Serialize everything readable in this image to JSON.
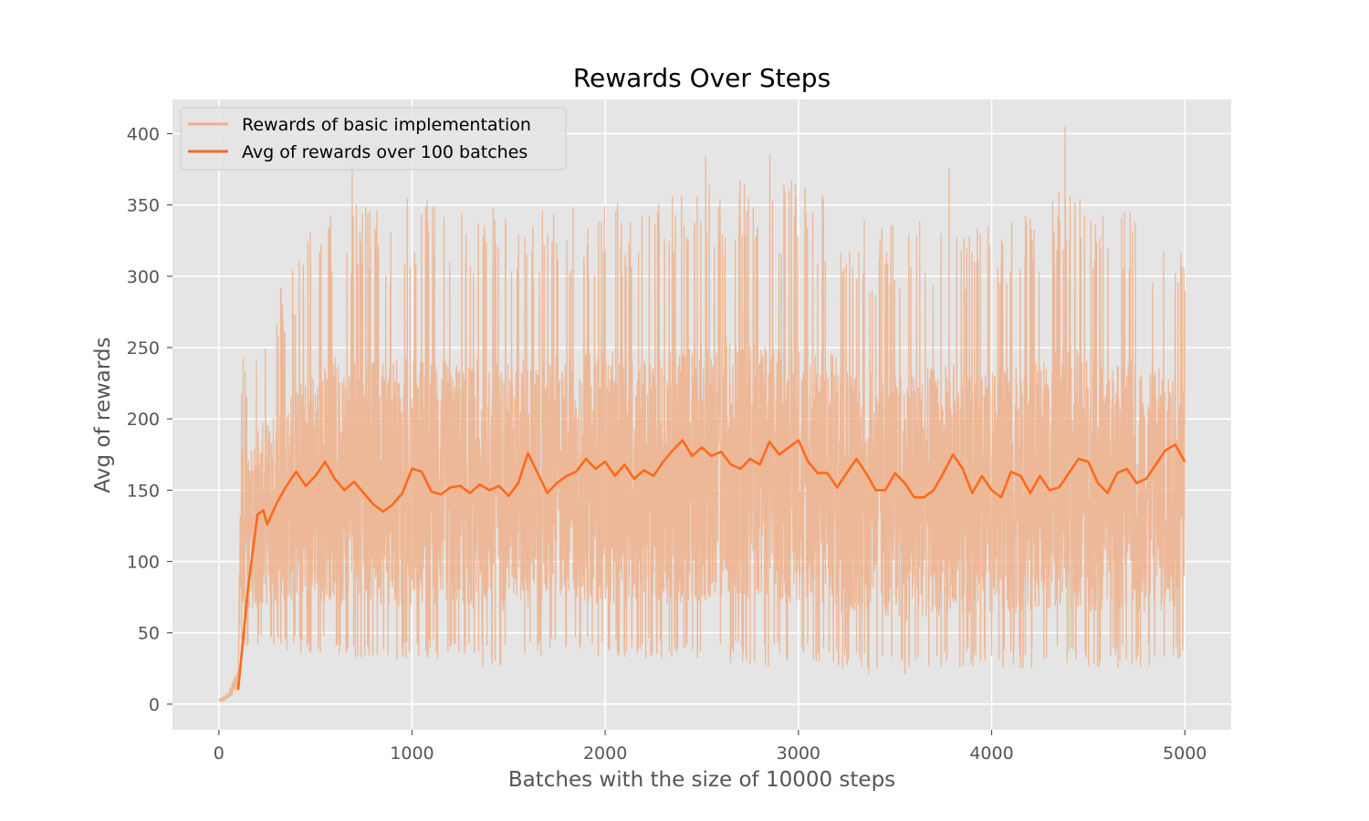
{
  "chart_data": {
    "type": "line",
    "title": "Rewards Over Steps",
    "xlabel": "Batches with the size of 10000 steps",
    "ylabel": "Avg of rewards",
    "xlim": [
      -240,
      5240
    ],
    "ylim": [
      -18,
      424
    ],
    "xticks": [
      0,
      1000,
      2000,
      3000,
      4000,
      5000
    ],
    "yticks": [
      0,
      50,
      100,
      150,
      200,
      250,
      300,
      350,
      400
    ],
    "grid": true,
    "legend_placement": "upper-left",
    "colors": {
      "raw": "#efb089",
      "avg": "#ff6a1a",
      "plot_bg": "#e5e5e5",
      "grid": "#ffffff"
    },
    "raw_series": {
      "name": "Rewards of basic implementation",
      "x_start": 0,
      "x_end": 5000,
      "envelope_x": [
        0,
        50,
        100,
        110,
        120,
        150,
        200,
        300,
        400,
        500,
        700,
        900,
        1000,
        1200,
        1400,
        1600,
        1800,
        2000,
        2200,
        2400,
        2600,
        2800,
        3000,
        3200,
        3400,
        3600,
        3800,
        4000,
        4200,
        4400,
        4600,
        4800,
        5000
      ],
      "envelope_hi": [
        4,
        8,
        28,
        180,
        250,
        240,
        270,
        290,
        320,
        340,
        355,
        345,
        360,
        345,
        350,
        345,
        350,
        355,
        350,
        360,
        370,
        365,
        370,
        355,
        335,
        340,
        345,
        335,
        345,
        365,
        345,
        350,
        320
      ],
      "envelope_lo": [
        1,
        3,
        10,
        60,
        40,
        40,
        40,
        40,
        35,
        35,
        30,
        30,
        30,
        30,
        25,
        30,
        35,
        30,
        30,
        30,
        30,
        25,
        30,
        25,
        20,
        20,
        25,
        25,
        25,
        25,
        25,
        25,
        30
      ],
      "peak_points": [
        [
          690,
          380
        ],
        [
          2852,
          386
        ],
        [
          2520,
          384
        ],
        [
          4380,
          405
        ],
        [
          3780,
          376
        ]
      ]
    },
    "series": [
      {
        "name": "Avg of rewards over 100 batches",
        "x": [
          100,
          150,
          200,
          230,
          250,
          300,
          350,
          400,
          450,
          500,
          550,
          600,
          650,
          700,
          750,
          800,
          850,
          900,
          950,
          1000,
          1050,
          1100,
          1150,
          1200,
          1250,
          1300,
          1350,
          1400,
          1450,
          1500,
          1550,
          1600,
          1650,
          1700,
          1750,
          1800,
          1850,
          1900,
          1950,
          2000,
          2050,
          2100,
          2150,
          2200,
          2250,
          2300,
          2350,
          2400,
          2450,
          2500,
          2550,
          2600,
          2650,
          2700,
          2750,
          2800,
          2850,
          2900,
          2950,
          3000,
          3050,
          3100,
          3150,
          3200,
          3250,
          3300,
          3350,
          3400,
          3450,
          3500,
          3550,
          3600,
          3650,
          3700,
          3750,
          3800,
          3850,
          3900,
          3950,
          4000,
          4050,
          4100,
          4150,
          4200,
          4250,
          4300,
          4350,
          4400,
          4450,
          4500,
          4550,
          4600,
          4650,
          4700,
          4750,
          4800,
          4850,
          4900,
          4950,
          5000
        ],
        "values": [
          10,
          80,
          133,
          136,
          126,
          141,
          153,
          163,
          153,
          160,
          170,
          158,
          150,
          156,
          148,
          140,
          135,
          140,
          148,
          165,
          163,
          149,
          147,
          152,
          153,
          148,
          154,
          150,
          153,
          146,
          155,
          176,
          162,
          148,
          155,
          160,
          163,
          172,
          165,
          170,
          160,
          168,
          158,
          164,
          160,
          170,
          178,
          185,
          174,
          180,
          174,
          177,
          168,
          165,
          172,
          168,
          184,
          175,
          180,
          185,
          170,
          162,
          162,
          152,
          162,
          172,
          162,
          150,
          150,
          162,
          155,
          145,
          145,
          150,
          162,
          175,
          165,
          148,
          160,
          150,
          145,
          163,
          160,
          148,
          160,
          150,
          152,
          162,
          172,
          170,
          155,
          148,
          162,
          165,
          155,
          158,
          168,
          178,
          182,
          170
        ]
      }
    ]
  }
}
